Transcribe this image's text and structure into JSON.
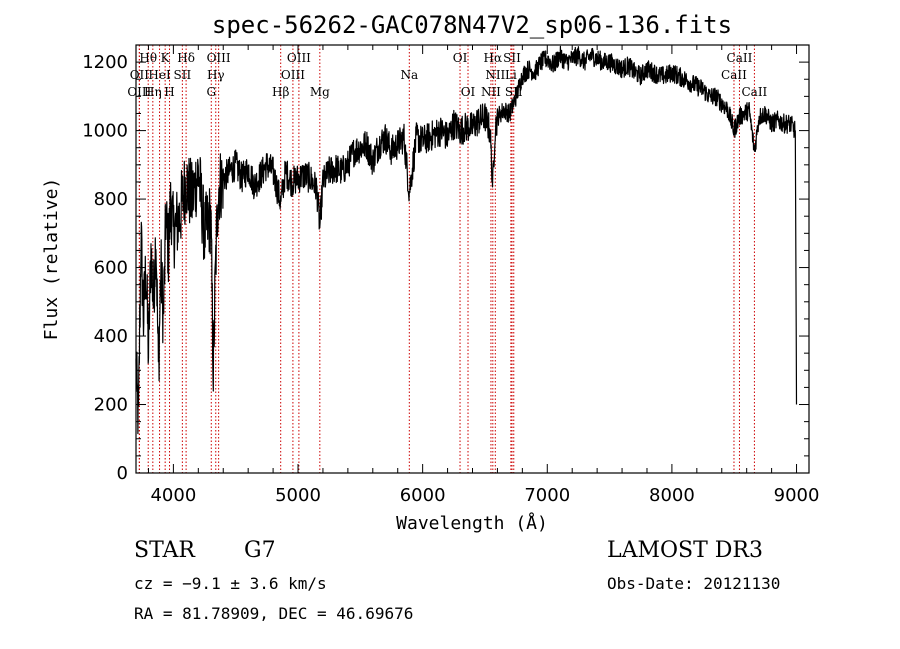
{
  "chart_data": {
    "type": "line",
    "title": "spec-56262-GAC078N47V2_sp06-136.fits",
    "xlabel": "Wavelength (Å)",
    "ylabel": "Flux (relative)",
    "xlim": [
      3700,
      9100
    ],
    "ylim": [
      0,
      1250
    ],
    "x_ticks": [
      4000,
      5000,
      6000,
      7000,
      8000,
      9000
    ],
    "y_ticks": [
      0,
      200,
      400,
      600,
      800,
      1000,
      1200
    ],
    "series": [
      {
        "name": "spectrum",
        "x": [
          3700,
          3720,
          3740,
          3760,
          3780,
          3800,
          3820,
          3840,
          3860,
          3880,
          3900,
          3920,
          3940,
          3960,
          3980,
          4000,
          4050,
          4100,
          4150,
          4200,
          4250,
          4300,
          4320,
          4340,
          4360,
          4400,
          4450,
          4500,
          4550,
          4600,
          4650,
          4700,
          4750,
          4800,
          4861,
          4900,
          4950,
          5000,
          5050,
          5100,
          5150,
          5175,
          5200,
          5250,
          5300,
          5350,
          5400,
          5450,
          5500,
          5550,
          5600,
          5650,
          5700,
          5750,
          5800,
          5850,
          5893,
          5950,
          6000,
          6050,
          6100,
          6150,
          6200,
          6250,
          6300,
          6350,
          6400,
          6450,
          6500,
          6540,
          6563,
          6580,
          6600,
          6650,
          6700,
          6750,
          6800,
          6850,
          6900,
          6950,
          7000,
          7050,
          7100,
          7150,
          7200,
          7250,
          7300,
          7350,
          7400,
          7450,
          7500,
          7550,
          7600,
          7650,
          7700,
          7750,
          7800,
          7850,
          7900,
          7950,
          8000,
          8050,
          8100,
          8150,
          8200,
          8250,
          8300,
          8350,
          8400,
          8450,
          8498,
          8542,
          8580,
          8620,
          8662,
          8700,
          8750,
          8800,
          8850,
          8900,
          8950,
          8990,
          9000
        ],
        "values": [
          300,
          150,
          700,
          450,
          600,
          350,
          650,
          500,
          700,
          300,
          600,
          450,
          750,
          650,
          800,
          700,
          750,
          850,
          800,
          880,
          700,
          750,
          300,
          620,
          830,
          860,
          880,
          900,
          860,
          890,
          840,
          870,
          900,
          880,
          790,
          880,
          850,
          860,
          870,
          860,
          830,
          720,
          850,
          880,
          890,
          880,
          900,
          940,
          950,
          960,
          910,
          960,
          980,
          940,
          960,
          980,
          820,
          980,
          970,
          980,
          990,
          1000,
          980,
          1020,
          1000,
          1010,
          1010,
          1030,
          1040,
          1000,
          840,
          1000,
          1040,
          1060,
          1050,
          1100,
          1160,
          1180,
          1170,
          1200,
          1210,
          1190,
          1220,
          1200,
          1210,
          1220,
          1200,
          1220,
          1210,
          1200,
          1200,
          1190,
          1180,
          1190,
          1170,
          1160,
          1180,
          1170,
          1160,
          1160,
          1170,
          1160,
          1150,
          1140,
          1130,
          1120,
          1100,
          1100,
          1080,
          1060,
          1000,
          1040,
          1050,
          1060,
          940,
          1040,
          1050,
          1020,
          1030,
          1020,
          1020,
          1000,
          200
        ]
      }
    ],
    "lines": [
      {
        "name": "Hθ",
        "x": 3798,
        "row": 0
      },
      {
        "name": "OII",
        "x": 3727,
        "row": 1
      },
      {
        "name": "OIII",
        "x": 3727,
        "row": 2
      },
      {
        "name": "K",
        "x": 3934,
        "row": 0
      },
      {
        "name": "Hδ",
        "x": 4102,
        "row": 0
      },
      {
        "name": "HeI",
        "x": 3889,
        "row": 1
      },
      {
        "name": "SII",
        "x": 4072,
        "row": 1
      },
      {
        "name": "Hη",
        "x": 3835,
        "row": 2
      },
      {
        "name": "H",
        "x": 3969,
        "row": 2
      },
      {
        "name": "OIII",
        "x": 4363,
        "row": 0
      },
      {
        "name": "Hγ",
        "x": 4340,
        "row": 1
      },
      {
        "name": "G",
        "x": 4304,
        "row": 2
      },
      {
        "name": "OIII",
        "x": 5007,
        "row": 0
      },
      {
        "name": "OIII",
        "x": 4959,
        "row": 1
      },
      {
        "name": "Hβ",
        "x": 4861,
        "row": 2
      },
      {
        "name": "Mg",
        "x": 5175,
        "row": 2
      },
      {
        "name": "Na",
        "x": 5893,
        "row": 1
      },
      {
        "name": "OI",
        "x": 6300,
        "row": 0
      },
      {
        "name": "OI",
        "x": 6364,
        "row": 2
      },
      {
        "name": "Hα",
        "x": 6563,
        "row": 0
      },
      {
        "name": "SII",
        "x": 6717,
        "row": 0
      },
      {
        "name": "NII",
        "x": 6583,
        "row": 1
      },
      {
        "name": "Li",
        "x": 6708,
        "row": 1
      },
      {
        "name": "NII",
        "x": 6548,
        "row": 2
      },
      {
        "name": "SII",
        "x": 6731,
        "row": 2
      },
      {
        "name": "CaII",
        "x": 8542,
        "row": 0
      },
      {
        "name": "CaII",
        "x": 8498,
        "row": 1
      },
      {
        "name": "CaII",
        "x": 8662,
        "row": 2
      }
    ]
  },
  "info": {
    "object_class": "STAR",
    "subclass": "G7",
    "survey": "LAMOST DR3",
    "cz": "cz = −9.1 ± 3.6 km/s",
    "obs_date": "Obs-Date: 20121130",
    "coords": "RA =  81.78909, DEC =  46.69676"
  },
  "colors": {
    "line_marker": "#cc0000",
    "spectrum": "#000000",
    "axes": "#000000"
  }
}
